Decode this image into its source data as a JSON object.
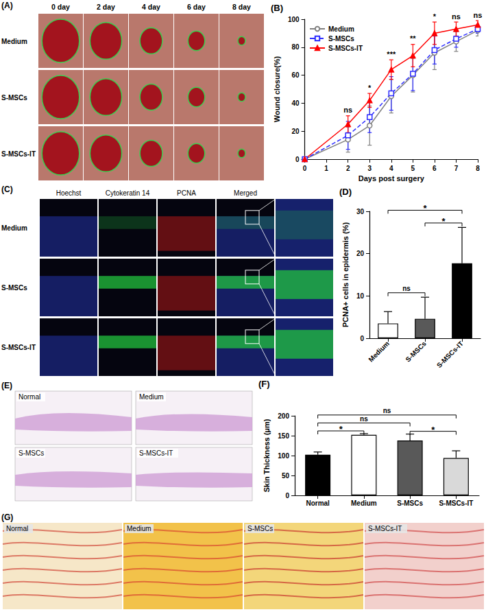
{
  "panels": {
    "A": {
      "letter": "(A)",
      "columns": [
        "0 day",
        "2 day",
        "4 day",
        "6 day",
        "8 day"
      ],
      "rows": [
        "Medium",
        "S-MSCs",
        "S-MSCs-IT"
      ]
    },
    "C": {
      "letter": "(C)",
      "columns": [
        "Hoechst",
        "Cytokeratin 14",
        "PCNA",
        "Merged"
      ],
      "rows": [
        "Medium",
        "S-MSCs",
        "S-MSCs-IT"
      ]
    },
    "E": {
      "letter": "(E)",
      "images": [
        "Normal",
        "Medium",
        "S-MSCs",
        "S-MSCs-IT"
      ]
    },
    "G": {
      "letter": "(G)",
      "images": [
        "Normal",
        "Medium",
        "S-MSCs",
        "S-MSCs-IT"
      ]
    }
  },
  "chart_data": [
    {
      "type": "line",
      "title": "(B)",
      "xlabel": "Days post surgery",
      "ylabel": "Wound closure(%)",
      "x": [
        0,
        2,
        3,
        4,
        5,
        6,
        7,
        8
      ],
      "xlim": [
        0,
        8
      ],
      "xticks": [
        0,
        1,
        2,
        3,
        4,
        5,
        6,
        7,
        8
      ],
      "ylim": [
        0,
        100
      ],
      "yticks": [
        0,
        20,
        40,
        60,
        80,
        100
      ],
      "grid": false,
      "legend": "upper left",
      "series": [
        {
          "name": "Medium",
          "color": "#808080",
          "marker": "circle_open",
          "line_style": "solid",
          "values": [
            0,
            14,
            24,
            45,
            60,
            76,
            84,
            92
          ],
          "errors": [
            0,
            9,
            14,
            12,
            12,
            12,
            7,
            4
          ]
        },
        {
          "name": "S-MSCs",
          "color": "#2b2bff",
          "marker": "square_open",
          "line_style": "dashed",
          "values": [
            0,
            17,
            30,
            47,
            61,
            78,
            86,
            93
          ],
          "errors": [
            0,
            10,
            11,
            12,
            12,
            10,
            6,
            3
          ]
        },
        {
          "name": "S-MSCs-IT",
          "color": "#ff0000",
          "marker": "triangle",
          "line_style": "solid",
          "values": [
            0,
            25,
            42,
            64,
            74,
            90,
            93,
            96
          ],
          "errors": [
            0,
            6,
            5,
            7,
            8,
            8,
            5,
            3
          ]
        }
      ],
      "annotations": [
        {
          "x": 2,
          "text": "ns"
        },
        {
          "x": 3,
          "text": "*"
        },
        {
          "x": 4,
          "text": "***"
        },
        {
          "x": 5,
          "text": "**"
        },
        {
          "x": 6,
          "text": "*"
        },
        {
          "x": 7,
          "text": "ns"
        },
        {
          "x": 8,
          "text": "ns"
        }
      ]
    },
    {
      "type": "bar",
      "title": "(D)",
      "ylabel": "PCNA+ cells in epidermis (%)",
      "categories": [
        "Medium",
        "S-MSCs",
        "S-MSCs-IT"
      ],
      "values": [
        3.5,
        4.6,
        17.7
      ],
      "errors": [
        2.8,
        5.1,
        8.5
      ],
      "colors": [
        "#ffffff",
        "#595959",
        "#000000"
      ],
      "ylim": [
        0,
        30
      ],
      "yticks": [
        0,
        10,
        20,
        30
      ],
      "grid": false,
      "annotations": [
        {
          "from": "Medium",
          "to": "S-MSCs",
          "text": "ns"
        },
        {
          "from": "S-MSCs",
          "to": "S-MSCs-IT",
          "text": "*"
        },
        {
          "from": "Medium",
          "to": "S-MSCs-IT",
          "text": "*"
        }
      ]
    },
    {
      "type": "bar",
      "title": "(F)",
      "ylabel": "Skin Thickness (μm)",
      "categories": [
        "Normal",
        "Medium",
        "S-MSCs",
        "S-MSCs-IT"
      ],
      "values": [
        102,
        152,
        138,
        94
      ],
      "errors": [
        7,
        3,
        16,
        18
      ],
      "colors": [
        "#000000",
        "#ffffff",
        "#595959",
        "#d9d9d9"
      ],
      "ylim": [
        0,
        200
      ],
      "yticks": [
        0,
        50,
        100,
        150,
        200
      ],
      "grid": false,
      "annotations": [
        {
          "from": "Normal",
          "to": "Medium",
          "text": "*"
        },
        {
          "from": "S-MSCs",
          "to": "S-MSCs-IT",
          "text": "*"
        },
        {
          "from": "Normal",
          "to": "S-MSCs",
          "text": "ns"
        },
        {
          "from": "Normal",
          "to": "S-MSCs-IT",
          "text": "ns"
        }
      ]
    }
  ]
}
